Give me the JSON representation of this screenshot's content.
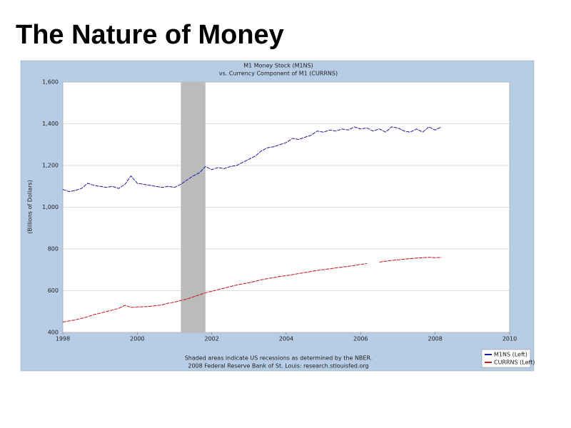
{
  "slide_title": "The Nature of Money",
  "chart_data": {
    "type": "line",
    "title": "M1 Money Stock (M1NS)",
    "subtitle": "vs. Currency Component of M1 (CURRNS)",
    "y_label": "(Billions of Dollars)",
    "footnote": "Shaded areas indicate US recessions as determined by the NBER.",
    "source": "2008 Federal Reserve Bank of St. Louis: research.stlouisfed.org",
    "x": [
      1998.0,
      1998.17,
      1998.33,
      1998.5,
      1998.67,
      1998.83,
      1999.0,
      1999.17,
      1999.33,
      1999.5,
      1999.67,
      1999.83,
      2000.0,
      2000.17,
      2000.33,
      2000.5,
      2000.67,
      2000.83,
      2001.0,
      2001.17,
      2001.33,
      2001.5,
      2001.67,
      2001.83,
      2002.0,
      2002.17,
      2002.33,
      2002.5,
      2002.67,
      2002.83,
      2003.0,
      2003.17,
      2003.33,
      2003.5,
      2003.67,
      2003.83,
      2004.0,
      2004.17,
      2004.33,
      2004.5,
      2004.67,
      2004.83,
      2005.0,
      2005.17,
      2005.33,
      2005.5,
      2005.67,
      2005.83,
      2006.0,
      2006.17,
      2006.33,
      2006.5,
      2006.67,
      2006.83,
      2007.0,
      2007.17,
      2007.33,
      2007.5,
      2007.67,
      2007.83,
      2008.0,
      2008.17
    ],
    "series": [
      {
        "name": "M1NS (Left)",
        "color": "#1a1aa6",
        "values": [
          1085,
          1075,
          1080,
          1090,
          1115,
          1105,
          1100,
          1095,
          1100,
          1090,
          1110,
          1150,
          1115,
          1110,
          1105,
          1100,
          1095,
          1100,
          1095,
          1110,
          1130,
          1150,
          1165,
          1195,
          1180,
          1190,
          1185,
          1195,
          1200,
          1215,
          1230,
          1245,
          1270,
          1285,
          1290,
          1300,
          1310,
          1330,
          1325,
          1335,
          1345,
          1365,
          1360,
          1370,
          1365,
          1375,
          1370,
          1385,
          1375,
          1380,
          1365,
          1375,
          1360,
          1385,
          1380,
          1365,
          1360,
          1375,
          1360,
          1385,
          1370,
          1385
        ]
      },
      {
        "name": "CURRNS (Left)",
        "color": "#cc1111",
        "values": [
          450,
          455,
          460,
          467,
          475,
          485,
          492,
          500,
          507,
          515,
          530,
          520,
          522,
          523,
          525,
          528,
          532,
          540,
          545,
          553,
          560,
          570,
          580,
          590,
          597,
          605,
          612,
          620,
          627,
          633,
          638,
          645,
          652,
          658,
          663,
          668,
          672,
          677,
          682,
          687,
          692,
          697,
          701,
          705,
          709,
          713,
          717,
          721,
          726,
          730,
          null,
          737,
          741,
          745,
          748,
          751,
          754,
          756,
          758,
          760,
          758,
          760
        ]
      }
    ],
    "recessions": [
      {
        "start": 2001.17,
        "end": 2001.83
      }
    ],
    "xlim": [
      1998,
      2010
    ],
    "xticks": [
      1998,
      2000,
      2002,
      2004,
      2006,
      2008,
      2010
    ],
    "ylim": [
      400,
      1600
    ],
    "yticks": [
      400,
      600,
      800,
      {
        "value": 1000,
        "label": "1,000"
      },
      {
        "value": 1200,
        "label": "1,200"
      },
      {
        "value": 1400,
        "label": "1,400"
      },
      {
        "value": 1600,
        "label": "1,600"
      }
    ],
    "grid": true,
    "legend": "lower right",
    "recession_color": "#bbbbbb",
    "frame_color": "#b6cde5"
  }
}
